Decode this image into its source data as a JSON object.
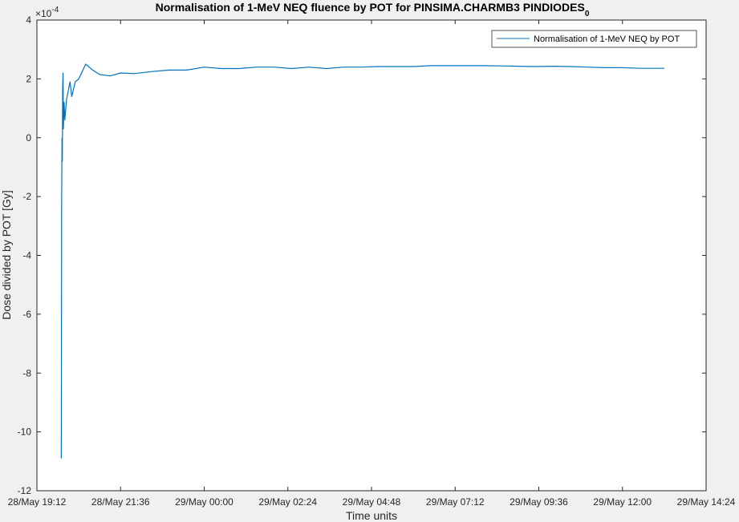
{
  "chart_data": {
    "type": "line",
    "title": "Normalisation of 1-MeV NEQ fluence by POT for PINSIMA.CHARMB3 PINDIODES",
    "title_subscript": "0",
    "xlabel": "Time units",
    "ylabel": "Dose divided by POT [Gy]",
    "y_exponent_label": "×10",
    "y_exponent": "-4",
    "x_tick_labels": [
      "28/May 19:12",
      "28/May 21:36",
      "29/May 00:00",
      "29/May 02:24",
      "29/May 04:48",
      "29/May 07:12",
      "29/May 09:36",
      "29/May 12:00",
      "29/May 14:24"
    ],
    "x_ticks_hours": [
      19.2,
      21.6,
      24.0,
      26.4,
      28.8,
      31.2,
      33.6,
      36.0,
      38.4
    ],
    "xlim_hours": [
      19.2,
      38.4
    ],
    "y_tick_labels": [
      "-12",
      "-10",
      "-8",
      "-6",
      "-4",
      "-2",
      "0",
      "2",
      "4"
    ],
    "ylim": [
      -12,
      4
    ],
    "grid": false,
    "legend_position": "top-right",
    "series": [
      {
        "name": "Normalisation of 1-MeV NEQ by POT",
        "color": "#0072BD",
        "x_hours": [
          19.9,
          19.91,
          19.92,
          19.93,
          19.94,
          19.95,
          19.96,
          19.98,
          20.0,
          20.05,
          20.1,
          20.15,
          20.2,
          20.3,
          20.4,
          20.5,
          20.6,
          20.8,
          21.0,
          21.3,
          21.6,
          22.0,
          22.5,
          23.0,
          23.5,
          24.0,
          24.5,
          25.0,
          25.5,
          26.0,
          26.5,
          27.0,
          27.5,
          28.0,
          28.5,
          29.0,
          29.5,
          30.0,
          30.5,
          31.0,
          31.5,
          32.0,
          32.5,
          33.0,
          33.5,
          34.0,
          34.5,
          35.0,
          35.5,
          36.0,
          36.5,
          37.0,
          37.2
        ],
        "values": [
          -10.9,
          -2.3,
          0.0,
          -0.8,
          1.7,
          2.2,
          0.3,
          1.2,
          0.6,
          1.3,
          1.6,
          1.9,
          1.4,
          1.9,
          2.0,
          2.25,
          2.5,
          2.3,
          2.15,
          2.1,
          2.2,
          2.18,
          2.25,
          2.3,
          2.3,
          2.4,
          2.35,
          2.35,
          2.4,
          2.4,
          2.35,
          2.4,
          2.35,
          2.4,
          2.4,
          2.42,
          2.42,
          2.42,
          2.45,
          2.45,
          2.45,
          2.45,
          2.44,
          2.43,
          2.42,
          2.43,
          2.42,
          2.4,
          2.38,
          2.38,
          2.36,
          2.36,
          2.36
        ]
      }
    ]
  }
}
